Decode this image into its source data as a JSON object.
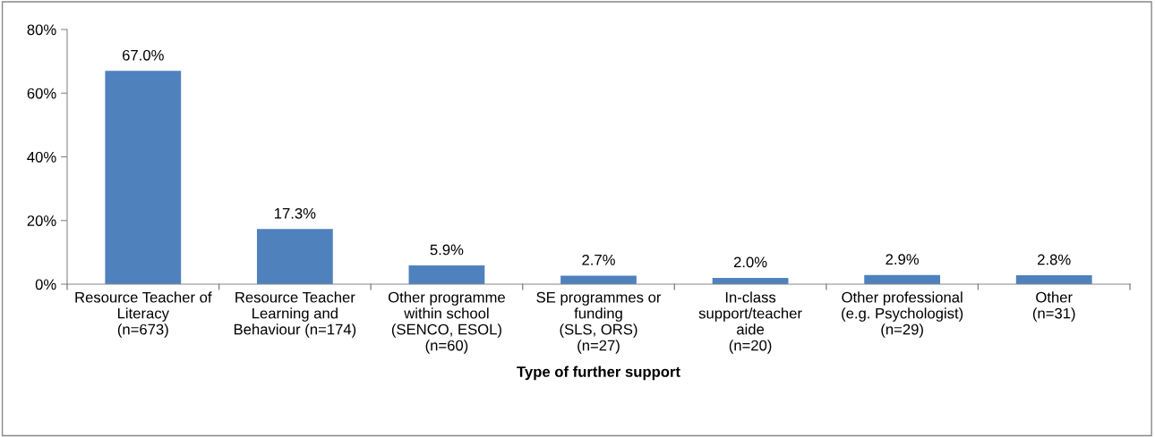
{
  "chart_data": {
    "type": "bar",
    "xlabel": "Type of further support",
    "categories": [
      "Resource Teacher of\nLiteracy\n(n=673)",
      "Resource Teacher\nLearning and\nBehaviour (n=174)",
      "Other programme\nwithin school\n(SENCO, ESOL)\n(n=60)",
      "SE programmes or\nfunding\n(SLS, ORS)\n(n=27)",
      "In-class\nsupport/teacher\naide\n(n=20)",
      "Other professional\n(e.g. Psychologist)\n(n=29)",
      "Other\n(n=31)"
    ],
    "values": [
      67.0,
      17.3,
      5.9,
      2.7,
      2.0,
      2.9,
      2.8
    ],
    "value_labels": [
      "67.0%",
      "17.3%",
      "5.9%",
      "2.7%",
      "2.0%",
      "2.9%",
      "2.8%"
    ],
    "color": "#4f81bd",
    "ylim": [
      0,
      80
    ],
    "yticks": [
      {
        "value": 0,
        "label": "0%"
      },
      {
        "value": 20,
        "label": "20%"
      },
      {
        "value": 40,
        "label": "40%"
      },
      {
        "value": 60,
        "label": "60%"
      },
      {
        "value": 80,
        "label": "80%"
      }
    ],
    "grid": false
  }
}
